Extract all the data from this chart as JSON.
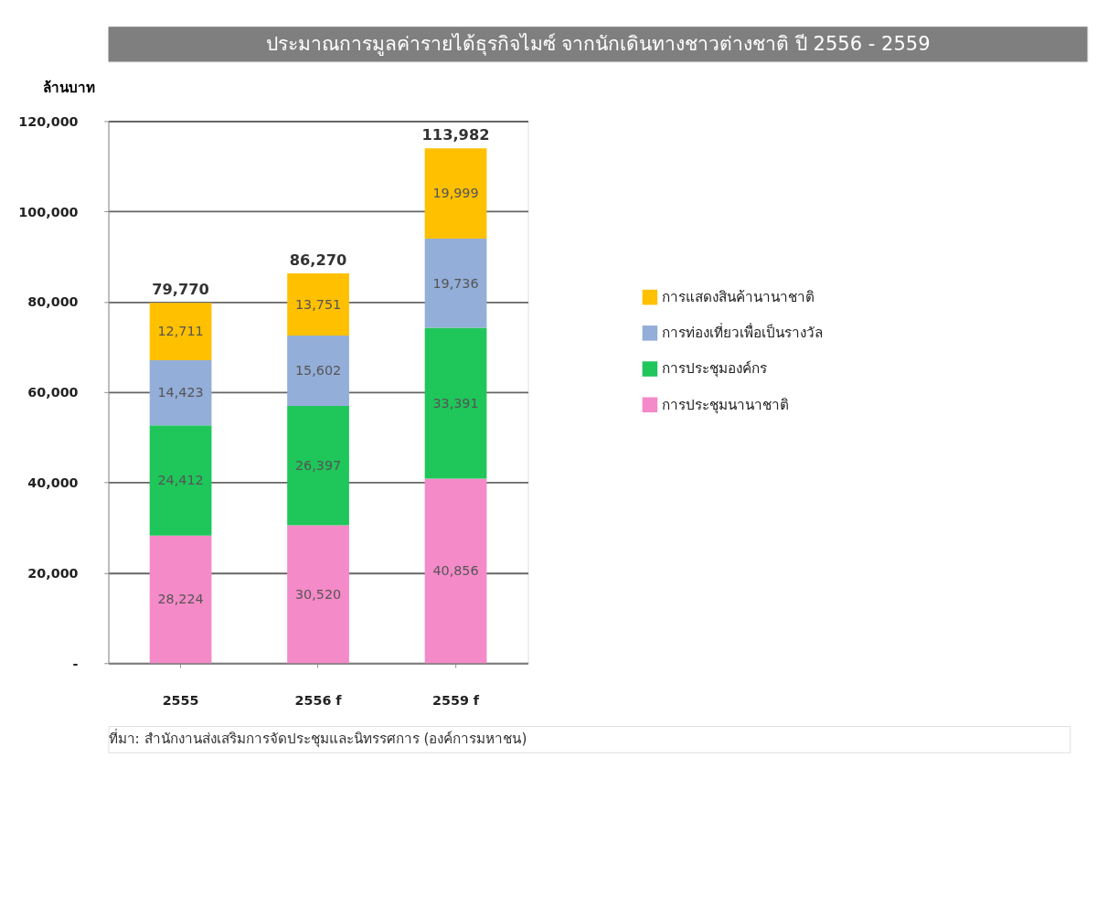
{
  "chart_data": {
    "type": "bar",
    "stacked": true,
    "title": "ประมาณการมูลค่ารายได้ธุรกิจไมซ์ จากนักเดินทางชาวต่างชาติ ปี 2556 - 2559",
    "ylabel": "ล้านบาท",
    "categories": [
      "2555",
      "2556 f",
      "2559 f"
    ],
    "series": [
      {
        "name": "การประชุมนานาชาติ",
        "color": "#f58ac8",
        "values": [
          28224,
          30520,
          40856
        ],
        "value_labels": [
          "28,224",
          "30,520",
          "40,856"
        ]
      },
      {
        "name": "การประชุมองค์กร",
        "color": "#1fc65a",
        "values": [
          24412,
          26397,
          33391
        ],
        "value_labels": [
          "24,412",
          "26,397",
          "33,391"
        ]
      },
      {
        "name": "การท่องเที่ยวเพื่อเป็นรางวัล",
        "color": "#93aed8",
        "values": [
          14423,
          15602,
          19736
        ],
        "value_labels": [
          "14,423",
          "15,602",
          "19,736"
        ]
      },
      {
        "name": "การแสดงสินค้านานาชาติ",
        "color": "#ffc000",
        "values": [
          12711,
          13751,
          19999
        ],
        "value_labels": [
          "12,711",
          "13,751",
          "19,999"
        ]
      }
    ],
    "totals": [
      "79,770",
      "86,270",
      "113,982"
    ],
    "ylim": [
      0,
      120000
    ],
    "yticks": [
      {
        "value": 0,
        "label": "-"
      },
      {
        "value": 20000,
        "label": "20,000"
      },
      {
        "value": 40000,
        "label": "40,000"
      },
      {
        "value": 60000,
        "label": "60,000"
      },
      {
        "value": 80000,
        "label": "80,000"
      },
      {
        "value": 100000,
        "label": "100,000"
      },
      {
        "value": 120000,
        "label": "120,000"
      }
    ],
    "grid": "y",
    "legend": "right",
    "annotations": [
      "ที่มา: สำนักงานส่งเสริมการจัดประชุมและนิทรรศการ (องค์การมหาชน)"
    ]
  }
}
